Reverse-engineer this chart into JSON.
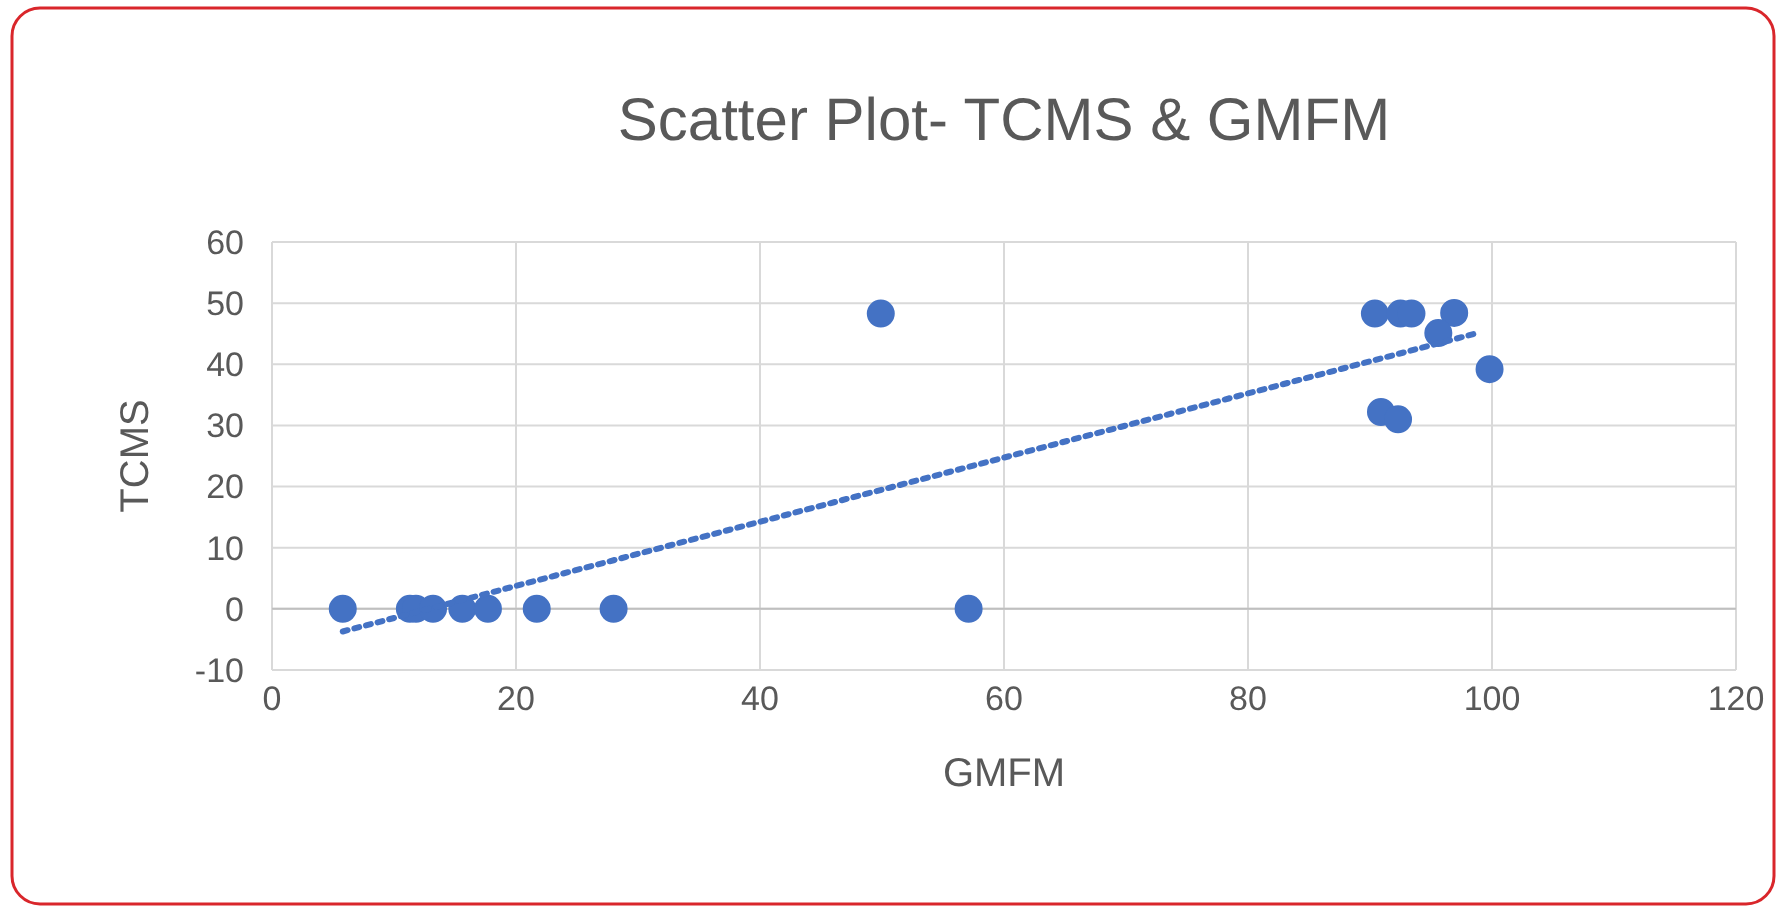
{
  "chart_data": {
    "type": "scatter",
    "title": "Scatter Plot- TCMS & GMFM",
    "xlabel": "GMFM",
    "ylabel": "TCMS",
    "xlim": [
      0,
      120
    ],
    "xticks": [
      0,
      20,
      40,
      60,
      80,
      100,
      120
    ],
    "ylim": [
      -10,
      60
    ],
    "yticks": [
      -10,
      0,
      10,
      20,
      30,
      40,
      50,
      60
    ],
    "grid": true,
    "series": [
      {
        "color": "#4472c4",
        "marker": "circle",
        "x": [
          5.8,
          11.3,
          11.8,
          13.2,
          15.6,
          17.7,
          21.7,
          28.0,
          49.9,
          57.1,
          90.4,
          92.5,
          93.4,
          96.9,
          95.6,
          99.8,
          90.9,
          92.3
        ],
        "values": [
          0,
          0,
          0,
          0,
          0,
          0,
          0,
          0,
          48.3,
          0,
          48.3,
          48.3,
          48.3,
          48.4,
          45.1,
          39.2,
          32.2,
          31.0
        ]
      },
      {
        "type": "line",
        "color": "#4472c4",
        "line_style": "dotted",
        "marker": "none",
        "x": [
          5.8,
          98.8
        ],
        "values": [
          -3.7,
          45.1
        ]
      }
    ]
  }
}
